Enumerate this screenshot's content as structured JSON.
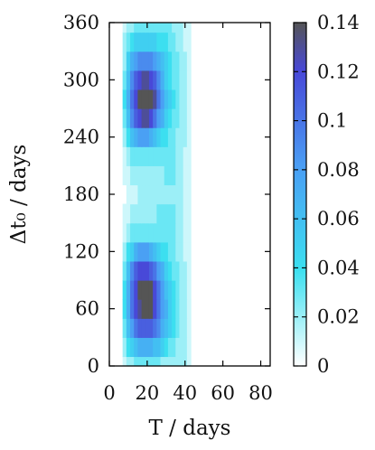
{
  "chart_data": {
    "type": "heatmap",
    "xlabel": "T / days",
    "ylabel": "Δt₀ / days",
    "xlim": [
      0,
      85
    ],
    "ylim": [
      0,
      360
    ],
    "x_ticks": [
      "0",
      "20",
      "40",
      "60",
      "80"
    ],
    "y_ticks": [
      "0",
      "60",
      "120",
      "180",
      "240",
      "300",
      "360"
    ],
    "colorbar": {
      "range": [
        0,
        0.14
      ],
      "ticks": [
        "0",
        "0.02",
        "0.04",
        "0.06",
        "0.08",
        "0.1",
        "0.12",
        "0.14"
      ],
      "colors": [
        "#ffffff",
        "#3ce0f0",
        "#4a9ef4",
        "#4848d8",
        "#555555"
      ]
    },
    "x_values": [
      6,
      8,
      10,
      12,
      14,
      16,
      18,
      20,
      22,
      24,
      26,
      28,
      30,
      32,
      34,
      36,
      38,
      40,
      42,
      44
    ],
    "y_values": [
      0,
      20,
      40,
      60,
      80,
      100,
      120,
      140,
      160,
      180,
      200,
      220,
      240,
      260,
      280,
      300,
      320,
      340,
      360
    ],
    "z": [
      [
        0.0,
        0.01,
        0.02,
        0.02,
        0.03,
        0.03,
        0.03,
        0.03,
        0.03,
        0.03,
        0.03,
        0.02,
        0.02,
        0.02,
        0.02,
        0.02,
        0.02,
        0.02,
        0.01,
        0.0
      ],
      [
        0.0,
        0.02,
        0.04,
        0.05,
        0.06,
        0.07,
        0.07,
        0.07,
        0.07,
        0.06,
        0.06,
        0.05,
        0.04,
        0.03,
        0.03,
        0.02,
        0.02,
        0.02,
        0.01,
        0.0
      ],
      [
        0.0,
        0.03,
        0.06,
        0.08,
        0.1,
        0.11,
        0.11,
        0.11,
        0.11,
        0.1,
        0.09,
        0.07,
        0.06,
        0.05,
        0.04,
        0.03,
        0.02,
        0.02,
        0.01,
        0.0
      ],
      [
        0.0,
        0.04,
        0.07,
        0.1,
        0.12,
        0.13,
        0.14,
        0.14,
        0.14,
        0.12,
        0.1,
        0.08,
        0.07,
        0.05,
        0.04,
        0.03,
        0.02,
        0.02,
        0.01,
        0.0
      ],
      [
        0.0,
        0.04,
        0.07,
        0.1,
        0.12,
        0.14,
        0.15,
        0.15,
        0.14,
        0.12,
        0.1,
        0.08,
        0.06,
        0.05,
        0.04,
        0.03,
        0.02,
        0.02,
        0.01,
        0.0
      ],
      [
        0.0,
        0.03,
        0.06,
        0.09,
        0.11,
        0.12,
        0.12,
        0.12,
        0.11,
        0.1,
        0.08,
        0.07,
        0.05,
        0.04,
        0.03,
        0.03,
        0.02,
        0.02,
        0.01,
        0.0
      ],
      [
        0.0,
        0.02,
        0.04,
        0.05,
        0.07,
        0.08,
        0.08,
        0.08,
        0.07,
        0.06,
        0.05,
        0.04,
        0.04,
        0.03,
        0.03,
        0.02,
        0.02,
        0.01,
        0.01,
        0.0
      ],
      [
        0.0,
        0.01,
        0.02,
        0.03,
        0.03,
        0.03,
        0.03,
        0.03,
        0.03,
        0.03,
        0.03,
        0.03,
        0.03,
        0.03,
        0.03,
        0.02,
        0.02,
        0.01,
        0.01,
        0.0
      ],
      [
        0.0,
        0.01,
        0.01,
        0.02,
        0.02,
        0.02,
        0.02,
        0.02,
        0.02,
        0.02,
        0.03,
        0.03,
        0.03,
        0.03,
        0.03,
        0.02,
        0.02,
        0.01,
        0.01,
        0.0
      ],
      [
        0.0,
        0.0,
        0.01,
        0.01,
        0.01,
        0.02,
        0.02,
        0.02,
        0.02,
        0.02,
        0.02,
        0.02,
        0.02,
        0.02,
        0.02,
        0.02,
        0.02,
        0.01,
        0.01,
        0.0
      ],
      [
        0.0,
        0.01,
        0.01,
        0.02,
        0.02,
        0.02,
        0.02,
        0.02,
        0.02,
        0.02,
        0.02,
        0.02,
        0.03,
        0.03,
        0.03,
        0.02,
        0.02,
        0.01,
        0.01,
        0.0
      ],
      [
        0.0,
        0.01,
        0.02,
        0.03,
        0.03,
        0.03,
        0.03,
        0.03,
        0.03,
        0.03,
        0.03,
        0.03,
        0.03,
        0.03,
        0.03,
        0.02,
        0.02,
        0.01,
        0.01,
        0.0
      ],
      [
        0.0,
        0.02,
        0.04,
        0.06,
        0.07,
        0.08,
        0.08,
        0.08,
        0.07,
        0.06,
        0.05,
        0.04,
        0.04,
        0.03,
        0.03,
        0.02,
        0.02,
        0.02,
        0.01,
        0.0
      ],
      [
        0.0,
        0.03,
        0.06,
        0.09,
        0.11,
        0.12,
        0.13,
        0.13,
        0.12,
        0.1,
        0.08,
        0.07,
        0.05,
        0.04,
        0.03,
        0.03,
        0.02,
        0.02,
        0.01,
        0.0
      ],
      [
        0.0,
        0.04,
        0.07,
        0.1,
        0.12,
        0.14,
        0.15,
        0.15,
        0.15,
        0.13,
        0.1,
        0.08,
        0.06,
        0.05,
        0.04,
        0.03,
        0.02,
        0.02,
        0.01,
        0.0
      ],
      [
        0.0,
        0.03,
        0.06,
        0.09,
        0.11,
        0.12,
        0.13,
        0.13,
        0.12,
        0.11,
        0.09,
        0.07,
        0.05,
        0.04,
        0.03,
        0.03,
        0.02,
        0.02,
        0.01,
        0.0
      ],
      [
        0.0,
        0.02,
        0.05,
        0.07,
        0.08,
        0.09,
        0.09,
        0.09,
        0.09,
        0.08,
        0.07,
        0.06,
        0.05,
        0.04,
        0.03,
        0.03,
        0.02,
        0.02,
        0.01,
        0.0
      ],
      [
        0.0,
        0.02,
        0.03,
        0.04,
        0.05,
        0.05,
        0.05,
        0.05,
        0.05,
        0.05,
        0.04,
        0.04,
        0.04,
        0.03,
        0.03,
        0.02,
        0.02,
        0.01,
        0.01,
        0.0
      ],
      [
        0.0,
        0.01,
        0.02,
        0.02,
        0.03,
        0.03,
        0.03,
        0.03,
        0.03,
        0.03,
        0.03,
        0.03,
        0.03,
        0.03,
        0.02,
        0.02,
        0.02,
        0.01,
        0.01,
        0.0
      ]
    ]
  }
}
